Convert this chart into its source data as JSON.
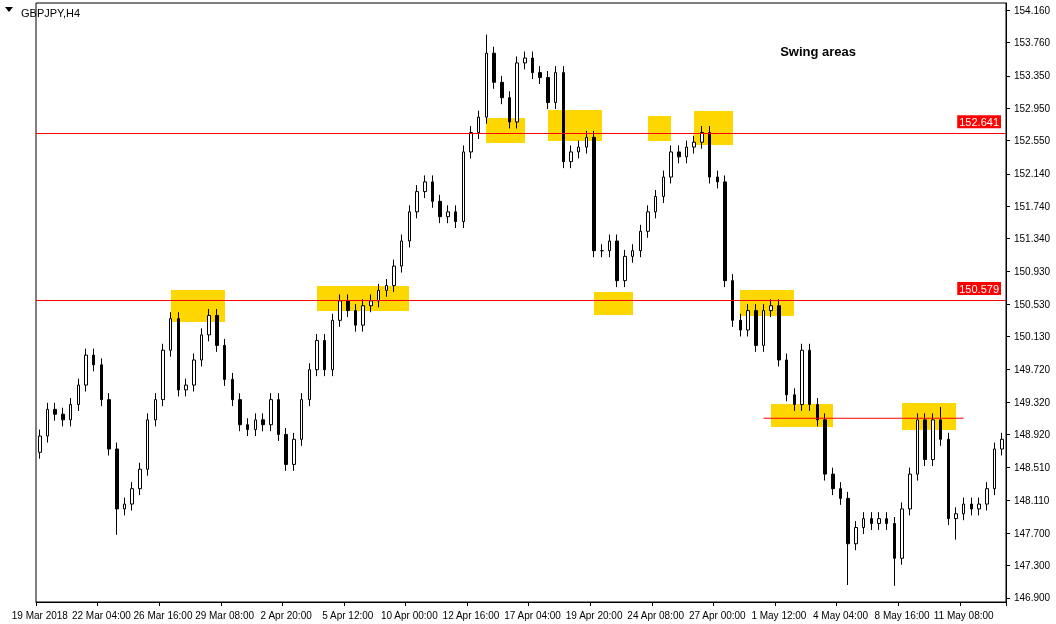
{
  "chart_data": {
    "type": "candlestick",
    "title": "GBPJPY,H4",
    "annotations": [
      "Swing areas"
    ],
    "categories": [
      "19 Mar 2018",
      null,
      null,
      null,
      null,
      null,
      null,
      null,
      "22 Mar 04:00",
      null,
      null,
      null,
      null,
      null,
      null,
      null,
      "26 Mar 16:00",
      null,
      null,
      null,
      null,
      null,
      null,
      null,
      "29 Mar 08:00",
      null,
      null,
      null,
      null,
      null,
      null,
      null,
      "2 Apr 20:00",
      null,
      null,
      null,
      null,
      null,
      null,
      null,
      "5 Apr 12:00",
      null,
      null,
      null,
      null,
      null,
      null,
      null,
      "10 Apr 00:00",
      null,
      null,
      null,
      null,
      null,
      null,
      null,
      "12 Apr 16:00",
      null,
      null,
      null,
      null,
      null,
      null,
      null,
      "17 Apr 04:00",
      null,
      null,
      null,
      null,
      null,
      null,
      null,
      "19 Apr 20:00",
      null,
      null,
      null,
      null,
      null,
      null,
      null,
      "24 Apr 08:00",
      null,
      null,
      null,
      null,
      null,
      null,
      null,
      "27 Apr 00:00",
      null,
      null,
      null,
      null,
      null,
      null,
      null,
      "1 May 12:00",
      null,
      null,
      null,
      null,
      null,
      null,
      null,
      "4 May 04:00",
      null,
      null,
      null,
      null,
      null,
      null,
      null,
      "8 May 16:00",
      null,
      null,
      null,
      null,
      null,
      null,
      null,
      "11 May 08:00",
      null,
      null,
      null,
      null,
      null
    ],
    "series": [
      {
        "color": "#000000",
        "ohlc": [
          [
            148.7,
            148.98,
            148.62,
            148.9
          ],
          [
            148.9,
            149.31,
            148.82,
            149.23
          ],
          [
            149.23,
            149.31,
            149.09,
            149.17
          ],
          [
            149.17,
            149.25,
            149.02,
            149.1
          ],
          [
            149.1,
            149.37,
            149.02,
            149.29
          ],
          [
            149.29,
            149.61,
            149.21,
            149.53
          ],
          [
            149.53,
            149.98,
            149.45,
            149.9
          ],
          [
            149.9,
            149.98,
            149.7,
            149.78
          ],
          [
            149.78,
            149.86,
            149.27,
            149.35
          ],
          [
            149.35,
            149.43,
            148.66,
            148.74
          ],
          [
            148.74,
            148.82,
            147.68,
            148.0
          ],
          [
            148.0,
            148.14,
            147.92,
            148.06
          ],
          [
            148.06,
            148.33,
            147.98,
            148.25
          ],
          [
            148.25,
            148.57,
            148.17,
            148.49
          ],
          [
            148.49,
            149.18,
            148.41,
            149.1
          ],
          [
            149.1,
            149.43,
            149.02,
            149.35
          ],
          [
            149.35,
            150.04,
            149.27,
            149.96
          ],
          [
            149.96,
            150.43,
            149.88,
            150.35
          ],
          [
            150.35,
            150.43,
            149.39,
            149.47
          ],
          [
            149.47,
            149.61,
            149.39,
            149.53
          ],
          [
            149.53,
            149.92,
            149.45,
            149.84
          ],
          [
            149.84,
            150.23,
            149.76,
            150.15
          ],
          [
            150.15,
            150.47,
            150.07,
            150.39
          ],
          [
            150.39,
            150.47,
            149.94,
            150.02
          ],
          [
            150.02,
            150.1,
            149.52,
            149.6
          ],
          [
            149.6,
            149.68,
            149.27,
            149.35
          ],
          [
            149.35,
            149.43,
            148.96,
            149.04
          ],
          [
            149.04,
            149.12,
            148.9,
            148.98
          ],
          [
            148.98,
            149.18,
            148.9,
            149.1
          ],
          [
            149.1,
            149.18,
            148.96,
            149.04
          ],
          [
            149.04,
            149.43,
            148.96,
            149.35
          ],
          [
            149.35,
            149.43,
            148.84,
            148.92
          ],
          [
            148.92,
            149.0,
            148.47,
            148.55
          ],
          [
            148.55,
            148.94,
            148.47,
            148.86
          ],
          [
            148.86,
            149.43,
            148.78,
            149.35
          ],
          [
            149.35,
            149.8,
            149.27,
            149.72
          ],
          [
            149.72,
            150.16,
            149.64,
            150.08
          ],
          [
            150.08,
            150.16,
            149.64,
            149.72
          ],
          [
            149.72,
            150.41,
            149.64,
            150.33
          ],
          [
            150.33,
            150.65,
            150.25,
            150.57
          ],
          [
            150.57,
            150.65,
            150.37,
            150.45
          ],
          [
            150.45,
            150.53,
            150.19,
            150.27
          ],
          [
            150.27,
            150.59,
            150.19,
            150.51
          ],
          [
            150.51,
            150.65,
            150.43,
            150.57
          ],
          [
            150.57,
            150.78,
            150.49,
            150.7
          ],
          [
            150.7,
            150.84,
            150.62,
            150.76
          ],
          [
            150.76,
            151.08,
            150.68,
            151.0
          ],
          [
            151.0,
            151.39,
            150.92,
            151.31
          ],
          [
            151.31,
            151.75,
            151.23,
            151.67
          ],
          [
            151.67,
            152.0,
            151.59,
            151.92
          ],
          [
            151.92,
            152.12,
            151.84,
            152.04
          ],
          [
            152.04,
            152.12,
            151.72,
            151.8
          ],
          [
            151.8,
            151.88,
            151.53,
            151.61
          ],
          [
            151.61,
            151.75,
            151.53,
            151.67
          ],
          [
            151.67,
            151.75,
            151.47,
            151.55
          ],
          [
            151.55,
            152.49,
            151.47,
            152.41
          ],
          [
            152.41,
            152.73,
            152.33,
            152.65
          ],
          [
            152.65,
            152.92,
            152.57,
            152.84
          ],
          [
            152.84,
            153.86,
            152.76,
            153.63
          ],
          [
            153.63,
            153.71,
            153.19,
            153.27
          ],
          [
            153.27,
            153.35,
            153.0,
            153.08
          ],
          [
            153.08,
            153.16,
            152.7,
            152.78
          ],
          [
            152.78,
            153.59,
            152.7,
            153.51
          ],
          [
            153.51,
            153.65,
            153.43,
            153.57
          ],
          [
            153.57,
            153.65,
            153.31,
            153.39
          ],
          [
            153.39,
            153.47,
            153.25,
            153.33
          ],
          [
            153.33,
            153.41,
            152.94,
            153.02
          ],
          [
            153.02,
            153.47,
            152.94,
            153.39
          ],
          [
            153.39,
            153.47,
            152.21,
            152.29
          ],
          [
            152.29,
            152.49,
            152.21,
            152.41
          ],
          [
            152.41,
            152.55,
            152.33,
            152.47
          ],
          [
            152.47,
            152.67,
            152.39,
            152.59
          ],
          [
            152.59,
            152.67,
            151.11,
            151.19
          ],
          [
            151.19,
            151.27,
            151.11,
            151.19
          ],
          [
            151.19,
            151.39,
            151.11,
            151.31
          ],
          [
            151.31,
            151.39,
            150.74,
            150.82
          ],
          [
            150.82,
            151.2,
            150.74,
            151.12
          ],
          [
            151.12,
            151.27,
            151.04,
            151.19
          ],
          [
            151.19,
            151.51,
            151.11,
            151.43
          ],
          [
            151.43,
            151.75,
            151.35,
            151.67
          ],
          [
            151.67,
            151.94,
            151.59,
            151.86
          ],
          [
            151.86,
            152.18,
            151.78,
            152.1
          ],
          [
            152.1,
            152.49,
            152.02,
            152.41
          ],
          [
            152.41,
            152.49,
            152.27,
            152.35
          ],
          [
            152.35,
            152.55,
            152.27,
            152.47
          ],
          [
            152.47,
            152.61,
            152.39,
            152.53
          ],
          [
            152.53,
            152.73,
            152.45,
            152.65
          ],
          [
            152.65,
            152.73,
            152.02,
            152.1
          ],
          [
            152.1,
            152.18,
            151.96,
            152.04
          ],
          [
            152.04,
            152.12,
            150.74,
            150.82
          ],
          [
            150.82,
            150.9,
            150.25,
            150.33
          ],
          [
            150.33,
            150.41,
            150.13,
            150.21
          ],
          [
            150.21,
            150.53,
            150.13,
            150.45
          ],
          [
            150.45,
            150.53,
            149.94,
            150.02
          ],
          [
            150.02,
            150.53,
            149.94,
            150.45
          ],
          [
            150.45,
            150.59,
            150.37,
            150.51
          ],
          [
            150.51,
            150.59,
            149.76,
            149.84
          ],
          [
            149.84,
            149.92,
            149.33,
            149.41
          ],
          [
            149.41,
            149.49,
            149.21,
            149.29
          ],
          [
            149.29,
            150.04,
            149.21,
            149.96
          ],
          [
            149.96,
            150.04,
            149.21,
            149.29
          ],
          [
            149.29,
            149.37,
            149.02,
            149.1
          ],
          [
            149.1,
            149.18,
            148.35,
            148.43
          ],
          [
            148.43,
            148.51,
            148.17,
            148.25
          ],
          [
            148.25,
            148.33,
            148.05,
            148.13
          ],
          [
            148.13,
            148.21,
            147.06,
            147.57
          ],
          [
            147.57,
            147.85,
            147.49,
            147.77
          ],
          [
            147.77,
            147.96,
            147.69,
            147.88
          ],
          [
            147.88,
            147.96,
            147.74,
            147.82
          ],
          [
            147.82,
            147.96,
            147.74,
            147.88
          ],
          [
            147.88,
            147.96,
            147.74,
            147.82
          ],
          [
            147.82,
            147.9,
            147.05,
            147.39
          ],
          [
            147.39,
            148.08,
            147.31,
            148.0
          ],
          [
            148.0,
            148.51,
            147.92,
            148.43
          ],
          [
            148.43,
            149.18,
            148.35,
            149.1
          ],
          [
            149.1,
            149.18,
            148.53,
            148.61
          ],
          [
            148.61,
            149.18,
            148.53,
            149.1
          ],
          [
            149.1,
            149.26,
            148.78,
            148.86
          ],
          [
            148.86,
            148.94,
            147.8,
            147.88
          ],
          [
            147.88,
            148.02,
            147.62,
            147.94
          ],
          [
            147.94,
            148.14,
            147.86,
            148.06
          ],
          [
            148.06,
            148.14,
            147.92,
            148.0
          ],
          [
            148.0,
            148.14,
            147.92,
            148.06
          ],
          [
            148.06,
            148.33,
            147.98,
            148.25
          ],
          [
            148.25,
            148.82,
            148.17,
            148.74
          ],
          [
            148.74,
            148.94,
            148.66,
            148.86
          ]
        ]
      },
      {
        "type": "line",
        "color": "#ff0000",
        "values": [
          null,
          null,
          null,
          null,
          null,
          null,
          null,
          null,
          null,
          null,
          null,
          null,
          null,
          null,
          null,
          null,
          null,
          null,
          null,
          null,
          null,
          null,
          null,
          null,
          null,
          null,
          null,
          null,
          null,
          null,
          null,
          null,
          null,
          null,
          null,
          null,
          null,
          null,
          null,
          null,
          null,
          null,
          null,
          null,
          null,
          null,
          null,
          null,
          null,
          null,
          null,
          null,
          null,
          null,
          null,
          null,
          null,
          null,
          null,
          null,
          null,
          null,
          null,
          null,
          null,
          null,
          null,
          null,
          null,
          null,
          null,
          null,
          null,
          null,
          null,
          null,
          null,
          null,
          null,
          null,
          null,
          null,
          null,
          null,
          null,
          null,
          null,
          null,
          null,
          null,
          null,
          null,
          null,
          null,
          149.12,
          null,
          null,
          null,
          null,
          null,
          null,
          null,
          null,
          null,
          null,
          null,
          null,
          null,
          null,
          null,
          null,
          null,
          null,
          null,
          null,
          null,
          null,
          null,
          null,
          null,
          149.12,
          null,
          null,
          null,
          null,
          null
        ]
      }
    ],
    "ref_lines": [
      {
        "axis": "y",
        "value": 152.641,
        "label": "152.641",
        "color": "#ff0000"
      },
      {
        "axis": "y",
        "value": 150.579,
        "label": "150.579",
        "color": "#ff0000"
      }
    ],
    "ylim": [
      146.85,
      154.25
    ],
    "yticks": [
      {
        "value": 146.9,
        "label": "146.900"
      },
      {
        "value": 147.3,
        "label": "147.300"
      },
      {
        "value": 147.7,
        "label": "147.700"
      },
      {
        "value": 148.11,
        "label": "148.110"
      },
      {
        "value": 148.51,
        "label": "148.510"
      },
      {
        "value": 148.92,
        "label": "148.920"
      },
      {
        "value": 149.32,
        "label": "149.320"
      },
      {
        "value": 149.72,
        "label": "149.720"
      },
      {
        "value": 150.13,
        "label": "150.130"
      },
      {
        "value": 150.53,
        "label": "150.530"
      },
      {
        "value": 150.93,
        "label": "150.930"
      },
      {
        "value": 151.34,
        "label": "151.340"
      },
      {
        "value": 151.74,
        "label": "151.740"
      },
      {
        "value": 152.14,
        "label": "152.140"
      },
      {
        "value": 152.55,
        "label": "152.550"
      },
      {
        "value": 152.95,
        "label": "152.950"
      },
      {
        "value": 153.35,
        "label": "153.350"
      },
      {
        "value": 153.76,
        "label": "153.760"
      },
      {
        "value": 154.16,
        "label": "154.160"
      }
    ],
    "grid": false
  }
}
